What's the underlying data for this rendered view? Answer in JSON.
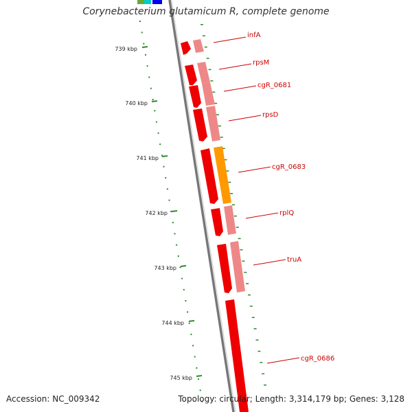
{
  "title": "Corynebacterium glutamicum R, complete genome",
  "footer": {
    "accession": "Accession: NC_009342",
    "summary": "Topology: circular; Length: 3,314,179 bp; Genes: 3,128"
  },
  "colors": {
    "backbone": "#8c8c8c",
    "tick": "#2a8a2a",
    "forward_gene": "#ee0000",
    "feature_pink": "#ee8888",
    "feature_orange": "#ff9900",
    "label": "#cc0000"
  },
  "ticks": [
    {
      "label": "739 kbp",
      "kbp": 739
    },
    {
      "label": "740 kbp",
      "kbp": 740
    },
    {
      "label": "741 kbp",
      "kbp": 741
    },
    {
      "label": "742 kbp",
      "kbp": 742
    },
    {
      "label": "743 kbp",
      "kbp": 743
    },
    {
      "label": "744 kbp",
      "kbp": 744
    },
    {
      "label": "745 kbp",
      "kbp": 745
    }
  ],
  "genes": [
    {
      "name": "infA"
    },
    {
      "name": "rpsM"
    },
    {
      "name": "cgR_0681"
    },
    {
      "name": "rpsD"
    },
    {
      "name": "cgR_0683"
    },
    {
      "name": "rplQ"
    },
    {
      "name": "truA"
    },
    {
      "name": "cgR_0686"
    }
  ]
}
